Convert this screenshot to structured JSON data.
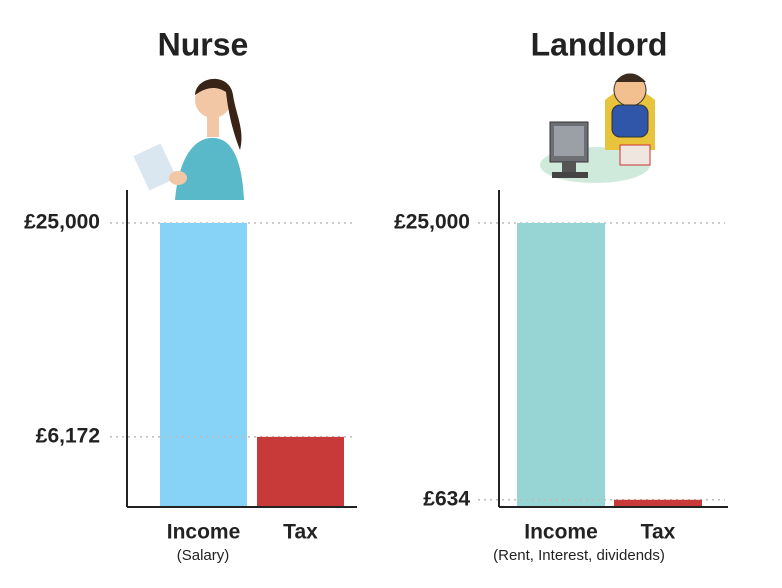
{
  "chart_data": [
    {
      "type": "bar",
      "title": "Nurse",
      "categories": [
        "Income",
        "Tax"
      ],
      "xlabel": "(Salary)",
      "values": [
        25000,
        6172
      ],
      "value_labels": [
        "£25,000",
        "£6,172"
      ],
      "colors": [
        "#87d3f8",
        "#c83a3a"
      ],
      "ylim": [
        0,
        27900
      ]
    },
    {
      "type": "bar",
      "title": "Landlord",
      "categories": [
        "Income",
        "Tax"
      ],
      "xlabel": "(Rent, Interest, dividends)",
      "values": [
        25000,
        634
      ],
      "value_labels": [
        "£25,000",
        "£634"
      ],
      "colors": [
        "#96d5d3",
        "#c83a3a"
      ],
      "ylim": [
        0,
        27900
      ]
    }
  ]
}
